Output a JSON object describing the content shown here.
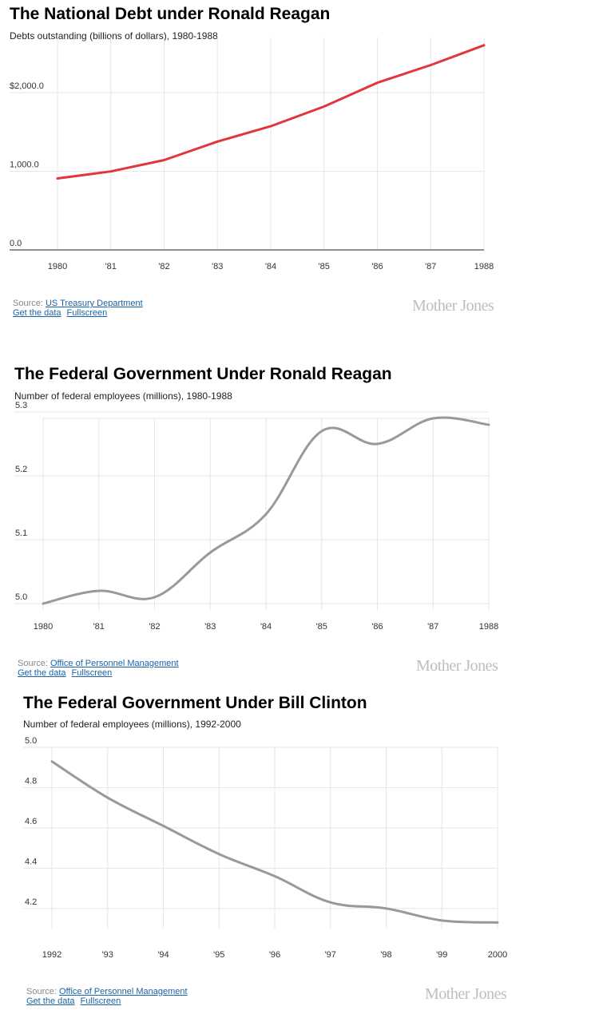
{
  "chart_data": [
    {
      "type": "line",
      "title": "The National Debt under Ronald Reagan",
      "subtitle": "Debts outstanding (billions of dollars), 1980-1988",
      "x": [
        1980,
        1981,
        1982,
        1983,
        1984,
        1985,
        1986,
        1987,
        1988
      ],
      "x_tick_labels": [
        "1980",
        "'81",
        "'82",
        "'83",
        "'84",
        "'85",
        "'86",
        "'87",
        "1988"
      ],
      "series": [
        {
          "values": [
            908,
            998,
            1142,
            1377,
            1572,
            1823,
            2125,
            2350,
            2602
          ],
          "color": "#e0363c"
        }
      ],
      "y_ticks": [
        0,
        1000,
        2000
      ],
      "y_tick_labels": [
        "0.0",
        "1,000.0",
        "$2,000.0"
      ],
      "ylim": [
        0,
        2700
      ],
      "xlabel": "",
      "ylabel": "",
      "grid": true,
      "source_label": "Source:",
      "source_link": "US Treasury Department",
      "get_data_label": "Get the data",
      "fullscreen_label": "Fullscreen",
      "brand": "Mother Jones"
    },
    {
      "type": "line",
      "title": "The Federal Government Under Ronald Reagan",
      "subtitle": "Number of federal employees (millions), 1980-1988",
      "x": [
        1980,
        1981,
        1982,
        1983,
        1984,
        1985,
        1986,
        1987,
        1988
      ],
      "x_tick_labels": [
        "1980",
        "'81",
        "'82",
        "'83",
        "'84",
        "'85",
        "'86",
        "'87",
        "1988"
      ],
      "series": [
        {
          "values": [
            5.0,
            5.02,
            5.01,
            5.08,
            5.14,
            5.27,
            5.25,
            5.29,
            5.28
          ],
          "color": "#999999"
        }
      ],
      "y_ticks": [
        5.0,
        5.1,
        5.2,
        5.3
      ],
      "y_tick_labels": [
        "5.0",
        "5.1",
        "5.2",
        "5.3"
      ],
      "ylim": [
        4.99,
        5.29
      ],
      "xlabel": "",
      "ylabel": "",
      "grid": true,
      "source_label": "Source:",
      "source_link": "Office of Personnel Management",
      "get_data_label": "Get the data",
      "fullscreen_label": "Fullscreen",
      "brand": "Mother Jones"
    },
    {
      "type": "line",
      "title": "The Federal Government Under Bill Clinton",
      "subtitle": "Number of federal employees (millions), 1992-2000",
      "x": [
        1992,
        1993,
        1994,
        1995,
        1996,
        1997,
        1998,
        1999,
        2000
      ],
      "x_tick_labels": [
        "1992",
        "'93",
        "'94",
        "'95",
        "'96",
        "'97",
        "'98",
        "'99",
        "2000"
      ],
      "series": [
        {
          "values": [
            4.93,
            4.75,
            4.61,
            4.47,
            4.36,
            4.23,
            4.2,
            4.14,
            4.13
          ],
          "color": "#999999"
        }
      ],
      "y_ticks": [
        4.2,
        4.4,
        4.6,
        4.8,
        5.0
      ],
      "y_tick_labels": [
        "4.2",
        "4.4",
        "4.6",
        "4.8",
        "5.0"
      ],
      "ylim": [
        4.1,
        5.0
      ],
      "xlabel": "",
      "ylabel": "",
      "grid": true,
      "source_label": "Source:",
      "source_link": "Office of Personnel Management",
      "get_data_label": "Get the data",
      "fullscreen_label": "Fullscreen",
      "brand": "Mother Jones"
    }
  ]
}
